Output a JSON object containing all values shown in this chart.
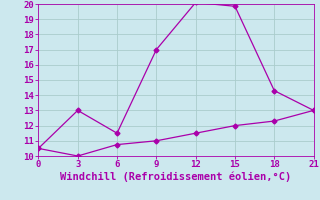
{
  "xlabel": "Windchill (Refroidissement éolien,°C)",
  "upper_x": [
    0,
    3,
    6,
    9,
    12,
    15,
    18,
    21
  ],
  "upper_y": [
    10.5,
    13.0,
    11.5,
    17.0,
    20.1,
    19.85,
    14.3,
    13.0
  ],
  "lower_x": [
    0,
    3,
    6,
    9,
    12,
    15,
    18,
    21
  ],
  "lower_y": [
    10.5,
    10.0,
    10.75,
    11.0,
    11.5,
    12.0,
    12.3,
    13.0
  ],
  "line_color": "#aa00aa",
  "bg_color": "#cce8ee",
  "grid_color": "#aacccc",
  "xlim": [
    0,
    21
  ],
  "ylim": [
    10,
    20
  ],
  "xticks": [
    0,
    3,
    6,
    9,
    12,
    15,
    18,
    21
  ],
  "yticks": [
    10,
    11,
    12,
    13,
    14,
    15,
    16,
    17,
    18,
    19,
    20
  ],
  "xlabel_fontsize": 7.5,
  "tick_fontsize": 6.5,
  "marker": "D",
  "marker_size": 2.5,
  "linewidth": 0.9
}
